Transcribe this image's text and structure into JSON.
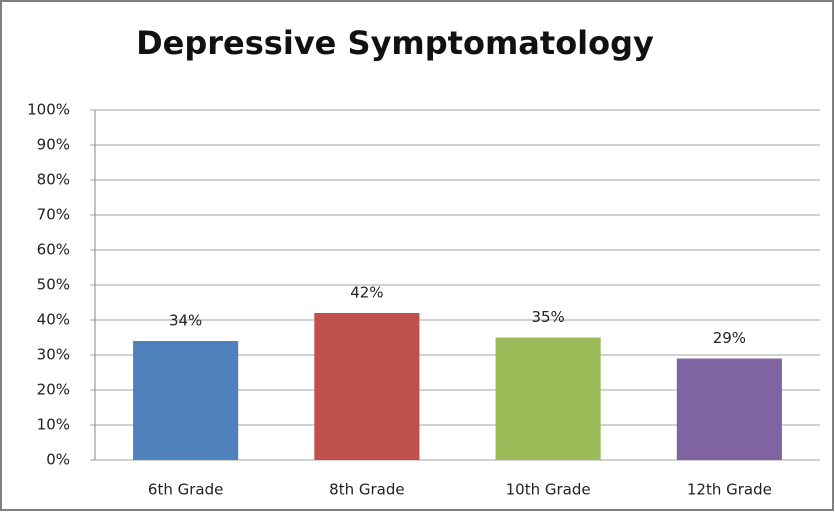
{
  "chart_data": {
    "type": "bar",
    "title": "Depressive Symptomatology",
    "categories": [
      "6th Grade",
      "8th Grade",
      "10th Grade",
      "12th Grade"
    ],
    "values": [
      34,
      42,
      35,
      29
    ],
    "value_labels": [
      "34%",
      "42%",
      "35%",
      "29%"
    ],
    "colors": [
      "#4f81bd",
      "#c0504d",
      "#9bbb59",
      "#8064a2"
    ],
    "ylim": [
      0,
      100
    ],
    "yticks": [
      {
        "value": 0,
        "label": "0%"
      },
      {
        "value": 10,
        "label": "10%"
      },
      {
        "value": 20,
        "label": "20%"
      },
      {
        "value": 30,
        "label": "30%"
      },
      {
        "value": 40,
        "label": "40%"
      },
      {
        "value": 50,
        "label": "50%"
      },
      {
        "value": 60,
        "label": "60%"
      },
      {
        "value": 70,
        "label": "70%"
      },
      {
        "value": 80,
        "label": "80%"
      },
      {
        "value": 90,
        "label": "90%"
      },
      {
        "value": 100,
        "label": "100%"
      }
    ],
    "grid": true
  }
}
